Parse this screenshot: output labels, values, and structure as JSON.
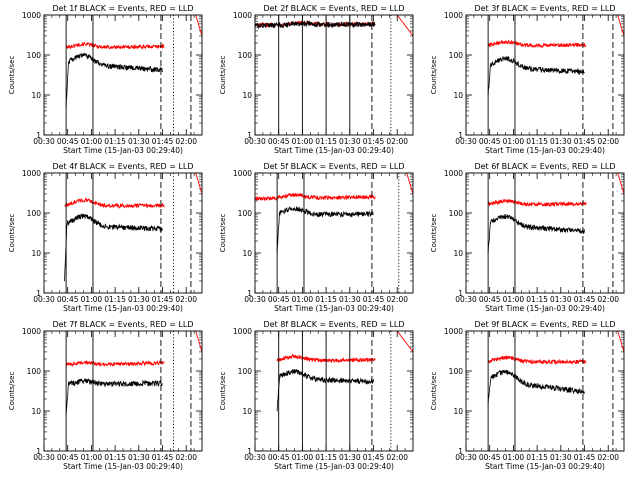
{
  "colors": {
    "events": "#000000",
    "lld": "#ff0000",
    "axes": "#000000",
    "background": "#ffffff"
  },
  "chart_data": [
    {
      "type": "line",
      "title": "Det 1f BLACK = Events, RED = LLD",
      "xlabel": "Start Time (15-Jan-03 00:29:40)",
      "ylabel": "Counts/sec",
      "yscale": "log",
      "xlim": [
        "00:30",
        "02:10"
      ],
      "ylim": [
        1,
        1000
      ],
      "xticks": [
        "00:30",
        "00:45",
        "01:00",
        "01:15",
        "01:30",
        "01:45",
        "02:00"
      ],
      "yticks": [
        "1",
        "10",
        "100",
        "1000"
      ],
      "events": {
        "start": "00:44",
        "end": "01:45",
        "begin": 5,
        "base": 60,
        "bump": 40,
        "bump_center": "00:55",
        "trend": -18
      },
      "lld": {
        "start": "00:44",
        "end": "01:46",
        "base": 150,
        "bump": 35,
        "bump_center": "00:55",
        "trend": 15
      },
      "tail": {
        "start": "02:06",
        "end": "02:10",
        "from": 1000,
        "to": 300
      },
      "markers": [
        {
          "time": "00:44",
          "style": "solid"
        },
        {
          "time": "01:01",
          "style": "solid"
        },
        {
          "time": "01:44",
          "style": "dashed"
        },
        {
          "time": "01:52",
          "style": "dotted"
        },
        {
          "time": "02:03",
          "style": "dashed"
        }
      ]
    },
    {
      "type": "line",
      "title": "Det 2f BLACK = Events, RED = LLD",
      "xlabel": "Start Time (15-Jan-03 00:29:40)",
      "ylabel": "Counts/sec",
      "yscale": "log",
      "xlim": [
        "00:30",
        "02:10"
      ],
      "ylim": [
        1,
        1000
      ],
      "xticks": [
        "00:30",
        "00:45",
        "01:00",
        "01:15",
        "01:30",
        "01:45",
        "02:00"
      ],
      "yticks": [
        "1",
        "10",
        "100",
        "1000"
      ],
      "events": {
        "start": "00:30",
        "end": "01:46",
        "begin": 500,
        "base": 550,
        "bump": 60,
        "bump_center": "01:00",
        "trend": 40
      },
      "lld": {
        "start": "00:30",
        "end": "01:46",
        "base": 560,
        "bump": 60,
        "bump_center": "01:00",
        "trend": 40
      },
      "tail": {
        "start": "02:00",
        "end": "02:10",
        "from": 1000,
        "to": 300
      },
      "markers": [
        {
          "time": "00:45",
          "style": "solid"
        },
        {
          "time": "01:00",
          "style": "solid"
        },
        {
          "time": "01:15",
          "style": "solid"
        },
        {
          "time": "01:30",
          "style": "solid"
        },
        {
          "time": "01:44",
          "style": "dashed"
        },
        {
          "time": "01:56",
          "style": "dotted"
        }
      ]
    },
    {
      "type": "line",
      "title": "Det 3f BLACK = Events, RED = LLD",
      "xlabel": "Start Time (15-Jan-03 00:29:40)",
      "ylabel": "Counts/sec",
      "yscale": "log",
      "xlim": [
        "00:30",
        "02:10"
      ],
      "ylim": [
        1,
        1000
      ],
      "xticks": [
        "00:30",
        "00:45",
        "01:00",
        "01:15",
        "01:30",
        "01:45",
        "02:00"
      ],
      "yticks": [
        "1",
        "10",
        "100",
        "1000"
      ],
      "events": {
        "start": "00:44",
        "end": "01:45",
        "begin": 10,
        "base": 50,
        "bump": 35,
        "bump_center": "00:55",
        "trend": -12
      },
      "lld": {
        "start": "00:44",
        "end": "01:46",
        "base": 170,
        "bump": 40,
        "bump_center": "00:55",
        "trend": 10
      },
      "tail": {
        "start": "02:06",
        "end": "02:10",
        "from": 1000,
        "to": 300
      },
      "markers": [
        {
          "time": "00:44",
          "style": "solid"
        },
        {
          "time": "01:01",
          "style": "solid"
        },
        {
          "time": "01:44",
          "style": "dashed"
        },
        {
          "time": "02:03",
          "style": "dashed"
        }
      ]
    },
    {
      "type": "line",
      "title": "Det 4f BLACK = Events, RED = LLD",
      "xlabel": "Start Time (15-Jan-03 00:29:40)",
      "ylabel": "Counts/sec",
      "yscale": "log",
      "xlim": [
        "00:30",
        "02:10"
      ],
      "ylim": [
        1,
        1000
      ],
      "xticks": [
        "00:30",
        "00:45",
        "01:00",
        "01:15",
        "01:30",
        "01:45",
        "02:00"
      ],
      "yticks": [
        "1",
        "10",
        "100",
        "1000"
      ],
      "events": {
        "start": "00:43",
        "end": "01:45",
        "begin": 2,
        "base": 50,
        "bump": 35,
        "bump_center": "00:55",
        "trend": -10
      },
      "lld": {
        "start": "00:43",
        "end": "01:46",
        "base": 150,
        "bump": 60,
        "bump_center": "00:55",
        "trend": 5
      },
      "tail": {
        "start": "02:06",
        "end": "02:10",
        "from": 1000,
        "to": 300
      },
      "markers": [
        {
          "time": "00:44",
          "style": "solid"
        },
        {
          "time": "01:01",
          "style": "solid"
        },
        {
          "time": "01:44",
          "style": "dashed"
        },
        {
          "time": "01:52",
          "style": "dotted"
        },
        {
          "time": "02:03",
          "style": "dashed"
        }
      ]
    },
    {
      "type": "line",
      "title": "Det 5f BLACK = Events, RED = LLD",
      "xlabel": "Start Time (15-Jan-03 00:29:40)",
      "ylabel": "Counts/sec",
      "yscale": "log",
      "xlim": [
        "00:30",
        "02:10"
      ],
      "ylim": [
        1,
        1000
      ],
      "xticks": [
        "00:30",
        "00:45",
        "01:00",
        "01:15",
        "01:30",
        "01:45",
        "02:00"
      ],
      "yticks": [
        "1",
        "10",
        "100",
        "1000"
      ],
      "events": {
        "start": "00:44",
        "end": "01:45",
        "begin": 10,
        "base": 90,
        "bump": 40,
        "bump_center": "00:55",
        "trend": 5
      },
      "lld": {
        "start": "00:30",
        "end": "01:46",
        "base": 230,
        "bump": 50,
        "bump_center": "00:55",
        "trend": 20
      },
      "tail": {
        "start": "02:06",
        "end": "02:10",
        "from": 1000,
        "to": 300
      },
      "markers": [
        {
          "time": "00:44",
          "style": "solid"
        },
        {
          "time": "01:01",
          "style": "solid"
        },
        {
          "time": "01:44",
          "style": "dashed"
        },
        {
          "time": "02:01",
          "style": "dotted"
        }
      ]
    },
    {
      "type": "line",
      "title": "Det 6f BLACK = Events, RED = LLD",
      "xlabel": "Start Time (15-Jan-03 00:29:40)",
      "ylabel": "Counts/sec",
      "yscale": "log",
      "xlim": [
        "00:30",
        "02:10"
      ],
      "ylim": [
        1,
        1000
      ],
      "xticks": [
        "00:30",
        "00:45",
        "01:00",
        "01:15",
        "01:30",
        "01:45",
        "02:00"
      ],
      "yticks": [
        "1",
        "10",
        "100",
        "1000"
      ],
      "events": {
        "start": "00:44",
        "end": "01:45",
        "begin": 10,
        "base": 50,
        "bump": 35,
        "bump_center": "00:55",
        "trend": -15
      },
      "lld": {
        "start": "00:44",
        "end": "01:46",
        "base": 160,
        "bump": 40,
        "bump_center": "00:55",
        "trend": 10
      },
      "tail": {
        "start": "02:06",
        "end": "02:10",
        "from": 1000,
        "to": 300
      },
      "markers": [
        {
          "time": "00:44",
          "style": "solid"
        },
        {
          "time": "01:01",
          "style": "solid"
        },
        {
          "time": "01:44",
          "style": "dashed"
        },
        {
          "time": "02:03",
          "style": "dashed"
        }
      ]
    },
    {
      "type": "line",
      "title": "Det 7f BLACK = Events, RED = LLD",
      "xlabel": "Start Time (15-Jan-03 00:29:40)",
      "ylabel": "Counts/sec",
      "yscale": "log",
      "xlim": [
        "00:30",
        "02:10"
      ],
      "ylim": [
        1,
        1000
      ],
      "xticks": [
        "00:30",
        "00:45",
        "01:00",
        "01:15",
        "01:30",
        "01:45",
        "02:00"
      ],
      "yticks": [
        "1",
        "10",
        "100",
        "1000"
      ],
      "events": {
        "start": "00:44",
        "end": "01:45",
        "begin": 8,
        "base": 45,
        "bump": 10,
        "bump_center": "00:55",
        "trend": 5
      },
      "lld": {
        "start": "00:44",
        "end": "01:46",
        "base": 140,
        "bump": 20,
        "bump_center": "00:55",
        "trend": 20
      },
      "tail": {
        "start": "02:06",
        "end": "02:10",
        "from": 1000,
        "to": 300
      },
      "markers": [
        {
          "time": "00:44",
          "style": "solid"
        },
        {
          "time": "01:01",
          "style": "solid"
        },
        {
          "time": "01:44",
          "style": "dashed"
        },
        {
          "time": "01:52",
          "style": "dotted"
        },
        {
          "time": "02:03",
          "style": "dashed"
        }
      ]
    },
    {
      "type": "line",
      "title": "Det 8f BLACK = Events, RED = LLD",
      "xlabel": "Start Time (15-Jan-03 00:29:40)",
      "ylabel": "Counts/sec",
      "yscale": "log",
      "xlim": [
        "00:30",
        "02:10"
      ],
      "ylim": [
        1,
        1000
      ],
      "xticks": [
        "00:30",
        "00:45",
        "01:00",
        "01:15",
        "01:30",
        "01:45",
        "02:00"
      ],
      "yticks": [
        "1",
        "10",
        "100",
        "1000"
      ],
      "events": {
        "start": "00:44",
        "end": "01:45",
        "begin": 10,
        "base": 65,
        "bump": 35,
        "bump_center": "00:55",
        "trend": -10
      },
      "lld": {
        "start": "00:44",
        "end": "01:46",
        "base": 180,
        "bump": 50,
        "bump_center": "00:55",
        "trend": 10
      },
      "tail": {
        "start": "02:00",
        "end": "02:10",
        "from": 1000,
        "to": 300
      },
      "markers": [
        {
          "time": "00:45",
          "style": "solid"
        },
        {
          "time": "01:00",
          "style": "solid"
        },
        {
          "time": "01:15",
          "style": "solid"
        },
        {
          "time": "01:30",
          "style": "solid"
        },
        {
          "time": "01:44",
          "style": "dashed"
        },
        {
          "time": "01:56",
          "style": "dotted"
        }
      ]
    },
    {
      "type": "line",
      "title": "Det 9f BLACK = Events, RED = LLD",
      "xlabel": "Start Time (15-Jan-03 00:29:40)",
      "ylabel": "Counts/sec",
      "yscale": "log",
      "xlim": [
        "00:30",
        "02:10"
      ],
      "ylim": [
        1,
        1000
      ],
      "xticks": [
        "00:30",
        "00:45",
        "01:00",
        "01:15",
        "01:30",
        "01:45",
        "02:00"
      ],
      "yticks": [
        "1",
        "10",
        "100",
        "1000"
      ],
      "events": {
        "start": "00:44",
        "end": "01:45",
        "begin": 15,
        "base": 55,
        "bump": 45,
        "bump_center": "00:55",
        "trend": -25
      },
      "lld": {
        "start": "00:44",
        "end": "01:46",
        "base": 170,
        "bump": 50,
        "bump_center": "00:55",
        "trend": 0
      },
      "tail": {
        "start": "02:06",
        "end": "02:10",
        "from": 1000,
        "to": 300
      },
      "markers": [
        {
          "time": "00:44",
          "style": "solid"
        },
        {
          "time": "01:01",
          "style": "solid"
        },
        {
          "time": "01:44",
          "style": "dashed"
        },
        {
          "time": "02:03",
          "style": "dashed"
        }
      ]
    }
  ]
}
